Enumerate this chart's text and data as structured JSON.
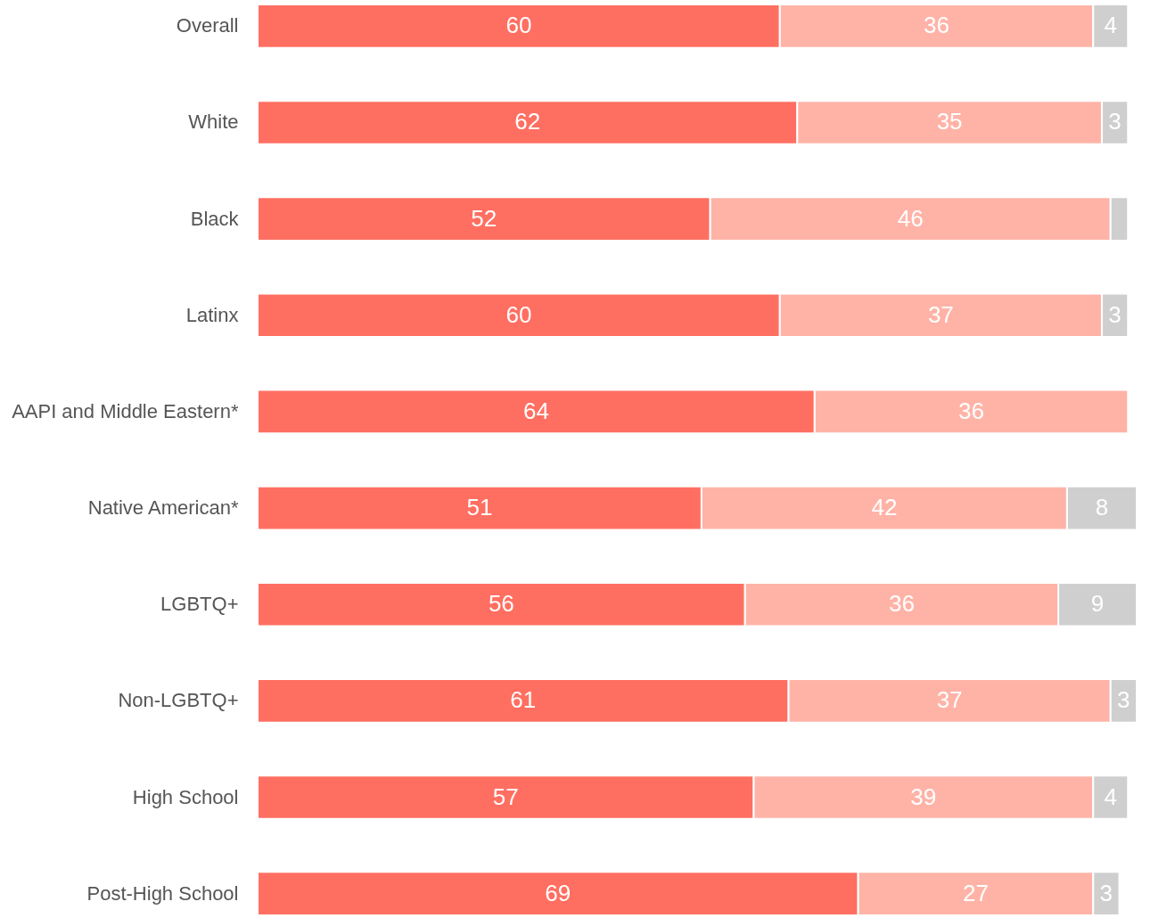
{
  "chart_data": {
    "type": "bar",
    "orientation": "horizontal",
    "stacked": true,
    "legend": false,
    "grid": false,
    "tick_labels": "y",
    "xlim": [
      0,
      101
    ],
    "categories": [
      "Overall",
      "White",
      "Black",
      "Latinx",
      "AAPI and Middle Eastern*",
      "Native American*",
      "LGBTQ+",
      "Non-LGBTQ+",
      "High School",
      "Post-High School"
    ],
    "series": [
      {
        "color": "#ff6f61",
        "values": [
          60,
          62,
          52,
          60,
          64,
          51,
          56,
          61,
          57,
          69
        ],
        "value_labels": [
          "60",
          "62",
          "52",
          "60",
          "64",
          "51",
          "56",
          "61",
          "57",
          "69"
        ]
      },
      {
        "color": "#ffb3a7",
        "values": [
          36,
          35,
          46,
          37,
          36,
          42,
          36,
          37,
          39,
          27
        ],
        "value_labels": [
          "36",
          "35",
          "46",
          "37",
          "36",
          "42",
          "36",
          "37",
          "39",
          "27"
        ]
      },
      {
        "color": "#d0cfcf",
        "values": [
          4,
          3,
          2,
          3,
          null,
          8,
          9,
          3,
          4,
          3
        ],
        "value_labels": [
          "4",
          "3",
          null,
          "3",
          null,
          "8",
          "9",
          "3",
          "4",
          "3"
        ]
      }
    ]
  }
}
